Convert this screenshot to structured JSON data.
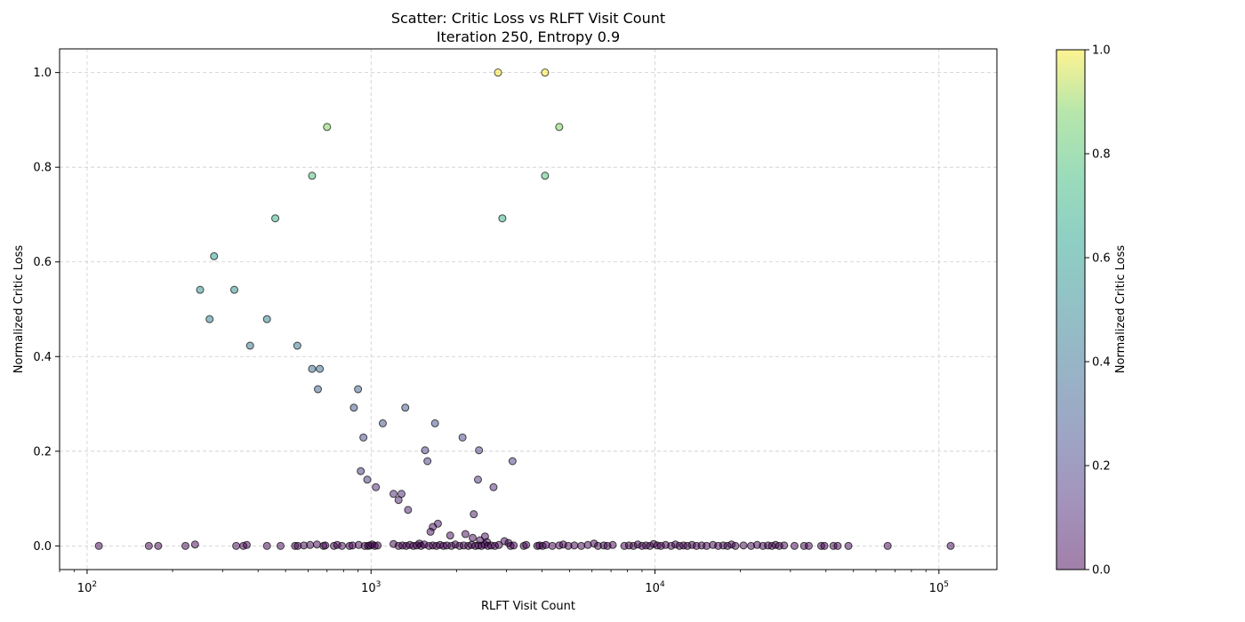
{
  "chart_data": {
    "type": "scatter",
    "title": "Scatter: Critic Loss vs RLFT Visit Count",
    "subtitle": "Iteration 250, Entropy 0.9",
    "xlabel": "RLFT Visit Count",
    "ylabel": "Normalized Critic Loss",
    "x_scale": "log",
    "xlim": [
      80,
      160000
    ],
    "ylim": [
      -0.05,
      1.05
    ],
    "x_ticks": [
      {
        "base": "10",
        "exp": "2"
      },
      {
        "base": "10",
        "exp": "3"
      },
      {
        "base": "10",
        "exp": "4"
      },
      {
        "base": "10",
        "exp": "5"
      }
    ],
    "y_ticks": [
      "0.0",
      "0.2",
      "0.4",
      "0.6",
      "0.8",
      "1.0"
    ],
    "grid": true,
    "colormap": "viridis",
    "point_alpha": 0.5,
    "colorbar": {
      "label": "Normalized Critic Loss",
      "range": [
        0,
        1
      ],
      "ticks": [
        "0.0",
        "0.2",
        "0.4",
        "0.6",
        "0.8",
        "1.0"
      ]
    },
    "points": [
      [
        2800,
        1.0
      ],
      [
        4100,
        1.0
      ],
      [
        700,
        0.885
      ],
      [
        4600,
        0.885
      ],
      [
        620,
        0.782
      ],
      [
        4100,
        0.782
      ],
      [
        460,
        0.692
      ],
      [
        2900,
        0.692
      ],
      [
        280,
        0.612
      ],
      [
        250,
        0.541
      ],
      [
        330,
        0.541
      ],
      [
        270,
        0.479
      ],
      [
        430,
        0.479
      ],
      [
        375,
        0.423
      ],
      [
        550,
        0.423
      ],
      [
        620,
        0.374
      ],
      [
        660,
        0.374
      ],
      [
        650,
        0.331
      ],
      [
        900,
        0.331
      ],
      [
        870,
        0.292
      ],
      [
        1320,
        0.292
      ],
      [
        1100,
        0.259
      ],
      [
        1680,
        0.259
      ],
      [
        940,
        0.229
      ],
      [
        2100,
        0.229
      ],
      [
        1550,
        0.202
      ],
      [
        2400,
        0.202
      ],
      [
        1580,
        0.179
      ],
      [
        3150,
        0.179
      ],
      [
        920,
        0.158
      ],
      [
        970,
        0.14
      ],
      [
        2380,
        0.14
      ],
      [
        1040,
        0.124
      ],
      [
        2700,
        0.124
      ],
      [
        1200,
        0.11
      ],
      [
        1280,
        0.11
      ],
      [
        1250,
        0.097
      ],
      [
        1350,
        0.076
      ],
      [
        2300,
        0.067
      ],
      [
        1720,
        0.047
      ],
      [
        1650,
        0.04
      ],
      [
        1620,
        0.03
      ],
      [
        2150,
        0.025
      ],
      [
        1900,
        0.022
      ],
      [
        2520,
        0.02
      ],
      [
        2280,
        0.017
      ],
      [
        2950,
        0.01
      ],
      [
        2420,
        0.012
      ],
      [
        2560,
        0.008
      ],
      [
        3050,
        0.006
      ],
      [
        1480,
        0.005
      ],
      [
        6100,
        0.005
      ],
      [
        110,
        0.0
      ],
      [
        165,
        0.0
      ],
      [
        178,
        0.0
      ],
      [
        222,
        0.0
      ],
      [
        240,
        0.003
      ],
      [
        335,
        0.0
      ],
      [
        355,
        0.0
      ],
      [
        365,
        0.002
      ],
      [
        430,
        0.0
      ],
      [
        480,
        0.0
      ],
      [
        540,
        0.0
      ],
      [
        552,
        0.0
      ],
      [
        580,
        0.001
      ],
      [
        610,
        0.002
      ],
      [
        645,
        0.003
      ],
      [
        680,
        0.0
      ],
      [
        690,
        0.001
      ],
      [
        740,
        0.0
      ],
      [
        760,
        0.002
      ],
      [
        790,
        0.0
      ],
      [
        840,
        0.0
      ],
      [
        860,
        0.001
      ],
      [
        905,
        0.002
      ],
      [
        950,
        0.0
      ],
      [
        975,
        0.0
      ],
      [
        990,
        0.001
      ],
      [
        1010,
        0.003
      ],
      [
        1030,
        0.0
      ],
      [
        1055,
        0.001
      ],
      [
        1200,
        0.004
      ],
      [
        1250,
        0.0
      ],
      [
        1290,
        0.001
      ],
      [
        1330,
        0.0
      ],
      [
        1370,
        0.002
      ],
      [
        1410,
        0.0
      ],
      [
        1450,
        0.001
      ],
      [
        1500,
        0.0
      ],
      [
        1540,
        0.003
      ],
      [
        1600,
        0.0
      ],
      [
        1650,
        0.001
      ],
      [
        1700,
        0.0
      ],
      [
        1750,
        0.002
      ],
      [
        1800,
        0.0
      ],
      [
        1850,
        0.001
      ],
      [
        1920,
        0.0
      ],
      [
        1980,
        0.003
      ],
      [
        2050,
        0.0
      ],
      [
        2120,
        0.001
      ],
      [
        2200,
        0.0
      ],
      [
        2260,
        0.002
      ],
      [
        2330,
        0.0
      ],
      [
        2390,
        0.001
      ],
      [
        2450,
        0.0
      ],
      [
        2510,
        0.003
      ],
      [
        2580,
        0.0
      ],
      [
        2650,
        0.001
      ],
      [
        2730,
        0.0
      ],
      [
        2820,
        0.002
      ],
      [
        3100,
        0.0
      ],
      [
        3180,
        0.001
      ],
      [
        3450,
        0.0
      ],
      [
        3520,
        0.002
      ],
      [
        3850,
        0.0
      ],
      [
        3920,
        0.001
      ],
      [
        4020,
        0.0
      ],
      [
        4130,
        0.002
      ],
      [
        4350,
        0.0
      ],
      [
        4600,
        0.001
      ],
      [
        4750,
        0.003
      ],
      [
        4950,
        0.0
      ],
      [
        5200,
        0.001
      ],
      [
        5500,
        0.0
      ],
      [
        5800,
        0.002
      ],
      [
        6300,
        0.0
      ],
      [
        6600,
        0.001
      ],
      [
        6800,
        0.0
      ],
      [
        7100,
        0.002
      ],
      [
        7800,
        0.0
      ],
      [
        8100,
        0.001
      ],
      [
        8400,
        0.0
      ],
      [
        8700,
        0.003
      ],
      [
        9000,
        0.0
      ],
      [
        9300,
        0.001
      ],
      [
        9600,
        0.0
      ],
      [
        9900,
        0.004
      ],
      [
        10200,
        0.001
      ],
      [
        10500,
        0.0
      ],
      [
        10900,
        0.002
      ],
      [
        11400,
        0.0
      ],
      [
        11800,
        0.003
      ],
      [
        12200,
        0.0
      ],
      [
        12600,
        0.001
      ],
      [
        13000,
        0.0
      ],
      [
        13500,
        0.002
      ],
      [
        14000,
        0.0
      ],
      [
        14600,
        0.001
      ],
      [
        15200,
        0.0
      ],
      [
        16000,
        0.002
      ],
      [
        16700,
        0.0
      ],
      [
        17400,
        0.001
      ],
      [
        18000,
        0.0
      ],
      [
        18600,
        0.003
      ],
      [
        19200,
        0.0
      ],
      [
        20500,
        0.001
      ],
      [
        21800,
        0.0
      ],
      [
        22900,
        0.002
      ],
      [
        24000,
        0.0
      ],
      [
        25000,
        0.001
      ],
      [
        25800,
        0.0
      ],
      [
        26600,
        0.002
      ],
      [
        27400,
        0.0
      ],
      [
        28500,
        0.001
      ],
      [
        31000,
        0.0
      ],
      [
        33500,
        0.0
      ],
      [
        34800,
        0.0
      ],
      [
        38500,
        0.0
      ],
      [
        39500,
        0.0
      ],
      [
        42500,
        0.0
      ],
      [
        44000,
        0.0
      ],
      [
        48000,
        0.0
      ],
      [
        66000,
        0.0
      ],
      [
        110000,
        0.0
      ]
    ]
  }
}
